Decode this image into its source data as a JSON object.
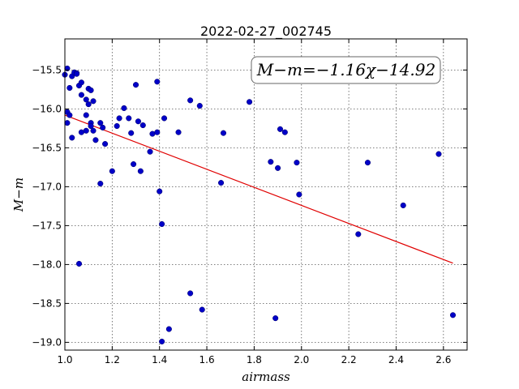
{
  "chart_data": {
    "type": "scatter",
    "title": "2022-02-27_002745",
    "xlabel": "airmass",
    "ylabel": "M−m",
    "xlim": [
      1.0,
      2.7
    ],
    "ylim": [
      -19.1,
      -15.1
    ],
    "xticks": [
      1.0,
      1.2,
      1.4,
      1.6,
      1.8,
      2.0,
      2.2,
      2.4,
      2.6
    ],
    "yticks": [
      -15.5,
      -16.0,
      -16.5,
      -17.0,
      -17.5,
      -18.0,
      -18.5,
      -19.0
    ],
    "x_tick_labels": [
      "1.0",
      "1.2",
      "1.4",
      "1.6",
      "1.8",
      "2.0",
      "2.2",
      "2.4",
      "2.6"
    ],
    "y_tick_labels": [
      "−15.5",
      "−16.0",
      "−16.5",
      "−17.0",
      "−17.5",
      "−18.0",
      "−18.5",
      "−19.0"
    ],
    "grid": true,
    "annotation": "M−m=−1.16χ−14.92",
    "fit": {
      "slope": -1.16,
      "intercept": -14.92,
      "x_range": [
        1.0,
        2.64
      ],
      "color": "#e00000"
    },
    "point_color": "#0000c8",
    "points": [
      [
        1.0,
        -15.56
      ],
      [
        1.01,
        -15.48
      ],
      [
        1.01,
        -16.04
      ],
      [
        1.01,
        -16.18
      ],
      [
        1.02,
        -16.08
      ],
      [
        1.02,
        -15.73
      ],
      [
        1.03,
        -15.58
      ],
      [
        1.03,
        -16.37
      ],
      [
        1.04,
        -15.53
      ],
      [
        1.05,
        -15.54
      ],
      [
        1.05,
        -15.55
      ],
      [
        1.06,
        -15.7
      ],
      [
        1.06,
        -17.99
      ],
      [
        1.07,
        -15.66
      ],
      [
        1.07,
        -15.82
      ],
      [
        1.07,
        -16.3
      ],
      [
        1.09,
        -16.28
      ],
      [
        1.09,
        -16.08
      ],
      [
        1.09,
        -15.88
      ],
      [
        1.1,
        -15.94
      ],
      [
        1.1,
        -15.74
      ],
      [
        1.11,
        -15.76
      ],
      [
        1.11,
        -16.18
      ],
      [
        1.11,
        -16.22
      ],
      [
        1.12,
        -15.9
      ],
      [
        1.12,
        -16.28
      ],
      [
        1.13,
        -16.4
      ],
      [
        1.15,
        -16.18
      ],
      [
        1.15,
        -16.96
      ],
      [
        1.16,
        -16.24
      ],
      [
        1.17,
        -16.45
      ],
      [
        1.2,
        -16.8
      ],
      [
        1.22,
        -16.22
      ],
      [
        1.23,
        -16.12
      ],
      [
        1.25,
        -15.99
      ],
      [
        1.27,
        -16.12
      ],
      [
        1.28,
        -16.31
      ],
      [
        1.29,
        -16.71
      ],
      [
        1.3,
        -15.69
      ],
      [
        1.31,
        -16.16
      ],
      [
        1.32,
        -16.8
      ],
      [
        1.33,
        -16.21
      ],
      [
        1.36,
        -16.55
      ],
      [
        1.37,
        -16.32
      ],
      [
        1.39,
        -16.3
      ],
      [
        1.39,
        -15.65
      ],
      [
        1.4,
        -17.06
      ],
      [
        1.41,
        -17.48
      ],
      [
        1.41,
        -18.99
      ],
      [
        1.42,
        -16.12
      ],
      [
        1.44,
        -18.83
      ],
      [
        1.48,
        -16.3
      ],
      [
        1.53,
        -15.89
      ],
      [
        1.53,
        -18.37
      ],
      [
        1.57,
        -15.96
      ],
      [
        1.58,
        -18.58
      ],
      [
        1.66,
        -16.95
      ],
      [
        1.67,
        -16.31
      ],
      [
        1.78,
        -15.91
      ],
      [
        1.87,
        -16.68
      ],
      [
        1.89,
        -18.69
      ],
      [
        1.9,
        -16.76
      ],
      [
        1.91,
        -16.26
      ],
      [
        1.93,
        -16.3
      ],
      [
        1.98,
        -16.69
      ],
      [
        1.99,
        -17.1
      ],
      [
        2.24,
        -17.61
      ],
      [
        2.28,
        -16.69
      ],
      [
        2.43,
        -17.24
      ],
      [
        2.58,
        -16.58
      ],
      [
        2.64,
        -18.65
      ]
    ]
  }
}
